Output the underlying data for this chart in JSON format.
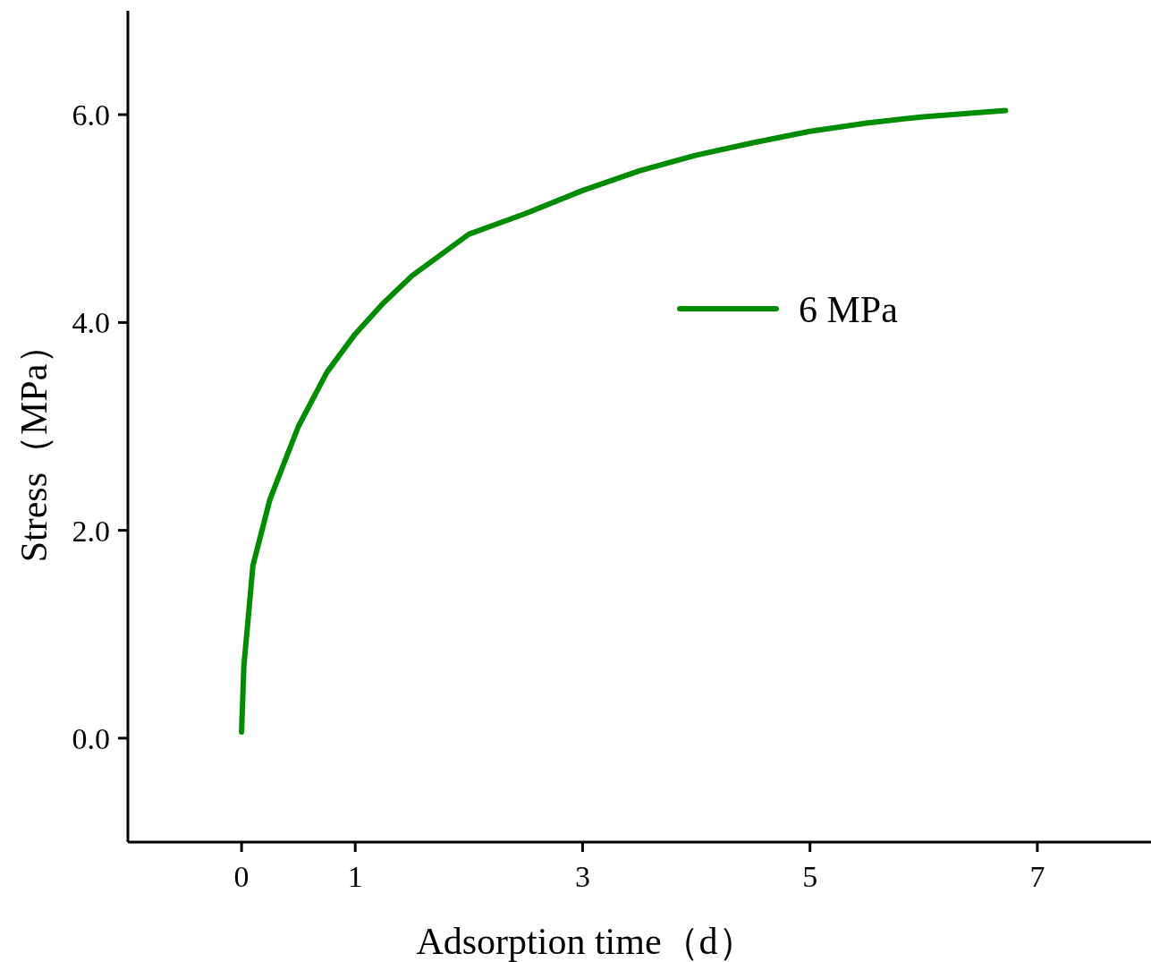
{
  "chart_data": {
    "type": "line",
    "xlabel": "Adsorption time（d）",
    "ylabel": "Stress（MPa）",
    "x": [
      0,
      0.02,
      0.1,
      0.25,
      0.5,
      0.75,
      1.0,
      1.25,
      1.5,
      2,
      2.5,
      3,
      3.5,
      4,
      4.5,
      5,
      5.5,
      6,
      6.72
    ],
    "series": [
      {
        "name": "6 MPa",
        "color": "#008c00",
        "values": [
          0.06,
          0.69,
          1.66,
          2.3,
          3.0,
          3.52,
          3.89,
          4.19,
          4.45,
          4.85,
          5.05,
          5.27,
          5.46,
          5.61,
          5.73,
          5.84,
          5.92,
          5.98,
          6.04
        ]
      }
    ],
    "xlim": [
      -1,
      8
    ],
    "ylim": [
      -1,
      7
    ],
    "xticks": [
      0,
      1,
      3,
      5,
      7
    ],
    "yticks": [
      {
        "value": 0,
        "label": "0.0"
      },
      {
        "value": 2,
        "label": "2.0"
      },
      {
        "value": 4,
        "label": "4.0"
      },
      {
        "value": 6,
        "label": "6.0"
      }
    ],
    "legend": "right"
  }
}
